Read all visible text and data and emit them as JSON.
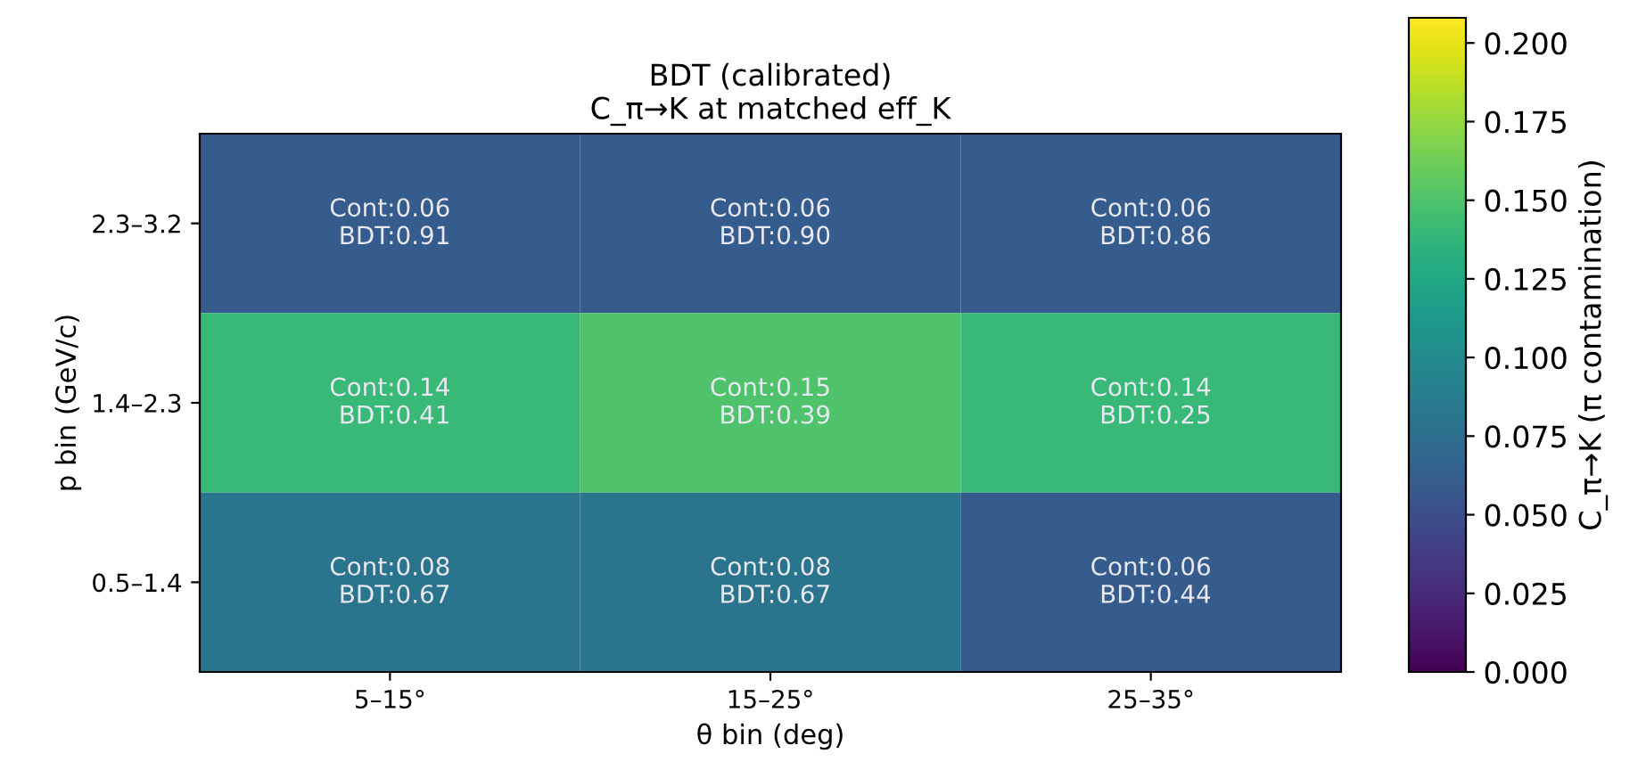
{
  "chart_data": {
    "type": "heatmap",
    "title": "BDT (calibrated)\nC_π→K at matched eff_K",
    "xlabel": "θ bin (deg)",
    "ylabel": "p bin (GeV/c)",
    "clabel": "C_π→K (π contamination)",
    "categories": [
      "5–15°",
      "15–25°",
      "25–35°"
    ],
    "y_categories": [
      "2.3–3.2",
      "1.4–2.3",
      "0.5–1.4"
    ],
    "cells": [
      [
        0.06,
        0.06,
        0.06
      ],
      [
        0.14,
        0.15,
        0.14
      ],
      [
        0.08,
        0.08,
        0.06
      ]
    ],
    "cell_labels": [
      [
        "Cont:0.06\nBDT:0.91",
        "Cont:0.06\nBDT:0.90",
        "Cont:0.06\nBDT:0.86"
      ],
      [
        "Cont:0.14\nBDT:0.41",
        "Cont:0.15\nBDT:0.39",
        "Cont:0.14\nBDT:0.25"
      ],
      [
        "Cont:0.08\nBDT:0.67",
        "Cont:0.08\nBDT:0.67",
        "Cont:0.06\nBDT:0.44"
      ]
    ],
    "clim": [
      0,
      0.208
    ],
    "cticks": [
      {
        "value": 0,
        "label": "0.000"
      },
      {
        "value": 0.025,
        "label": "0.025"
      },
      {
        "value": 0.05,
        "label": "0.050"
      },
      {
        "value": 0.075,
        "label": "0.075"
      },
      {
        "value": 0.1,
        "label": "0.100"
      },
      {
        "value": 0.125,
        "label": "0.125"
      },
      {
        "value": 0.15,
        "label": "0.150"
      },
      {
        "value": 0.175,
        "label": "0.175"
      },
      {
        "value": 0.2,
        "label": "0.200"
      }
    ]
  }
}
